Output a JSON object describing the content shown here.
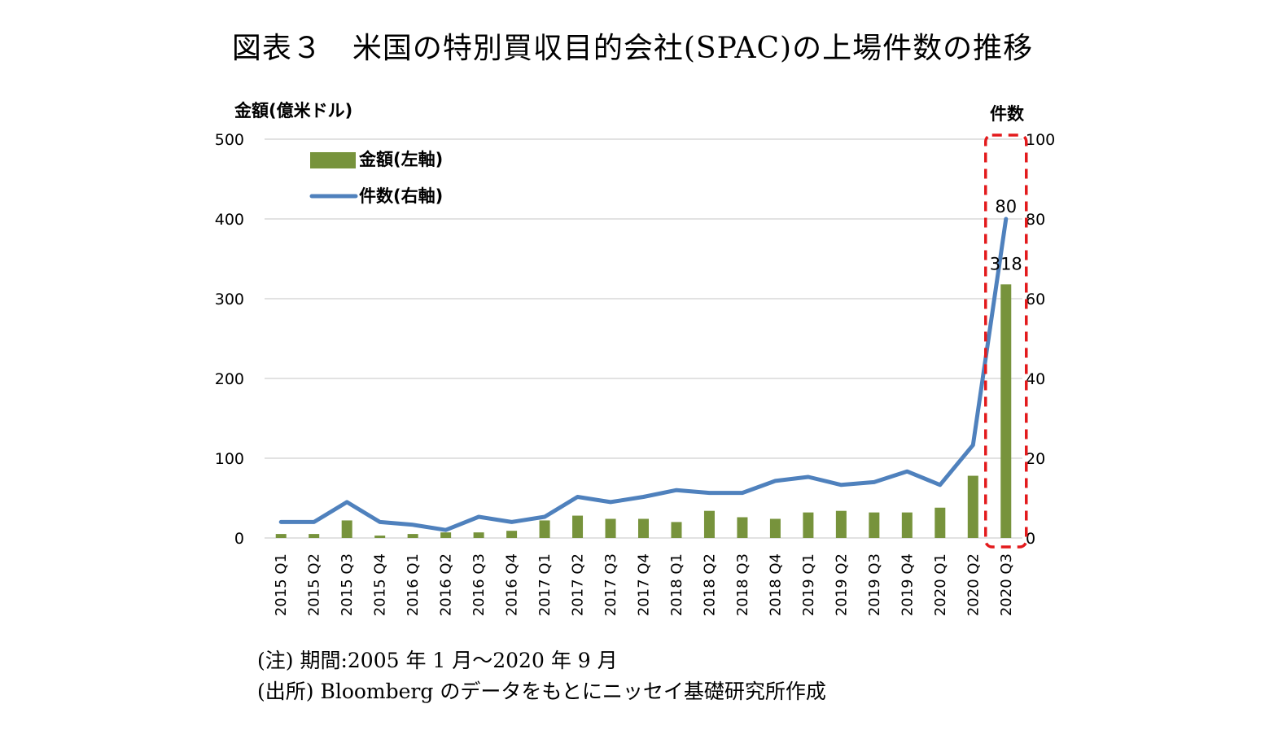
{
  "title": "図表３　米国の特別買収目的会社(SPAC)の上場件数の推移",
  "notes": {
    "note1": "(注) 期間:2005 年 1 月～2020 年 9 月",
    "note2": "(出所) Bloomberg のデータをもとにニッセイ基礎研究所作成"
  },
  "colors": {
    "bar": "#77933C",
    "line": "#4F81BD",
    "grid": "#D9D9D9",
    "highlight": "#E31A1C"
  },
  "chart_data": {
    "type": "bar",
    "categories": [
      "2015 Q1",
      "2015 Q2",
      "2015 Q3",
      "2015 Q4",
      "2016 Q1",
      "2016 Q2",
      "2016 Q3",
      "2016 Q4",
      "2017 Q1",
      "2017 Q2",
      "2017 Q3",
      "2017 Q4",
      "2018 Q1",
      "2018 Q2",
      "2018 Q3",
      "2018 Q4",
      "2019 Q1",
      "2019 Q2",
      "2019 Q3",
      "2019 Q4",
      "2020 Q1",
      "2020 Q2",
      "2020 Q3"
    ],
    "series": [
      {
        "name": "金額(左軸)",
        "type": "bar",
        "axis": "left",
        "values": [
          5,
          5,
          22,
          3,
          5,
          7,
          7,
          9,
          22,
          28,
          24,
          24,
          20,
          34,
          26,
          24,
          32,
          34,
          32,
          32,
          38,
          78,
          318
        ]
      },
      {
        "name": "件数(右軸)",
        "type": "line",
        "axis": "right",
        "values": [
          4,
          4,
          9,
          4,
          3.3,
          2,
          5.3,
          4,
          5.3,
          10.3,
          9,
          10.3,
          12,
          11.3,
          11.3,
          14.3,
          15.3,
          13.3,
          14,
          16.7,
          13.3,
          23.3,
          80
        ]
      }
    ],
    "left_axis": {
      "label": "金額(億米ドル)",
      "ylim": [
        0,
        500
      ],
      "ticks": [
        0,
        100,
        200,
        300,
        400,
        500
      ]
    },
    "right_axis": {
      "label": "件数",
      "ylim": [
        0,
        100
      ],
      "ticks": [
        0,
        20,
        40,
        60,
        80,
        100
      ]
    },
    "data_labels": [
      {
        "series": "件数(右軸)",
        "category": "2020 Q3",
        "text": "80"
      },
      {
        "series": "金額(左軸)",
        "category": "2020 Q3",
        "text": "318"
      }
    ],
    "highlight_category": "2020 Q3",
    "legend_position": "top-left",
    "grid": true
  }
}
